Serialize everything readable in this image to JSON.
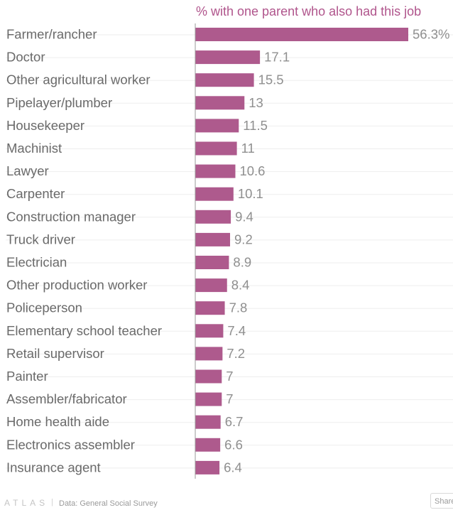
{
  "chart_data": {
    "type": "bar",
    "orientation": "horizontal",
    "title": "% with one parent who also had this job",
    "categories": [
      "Farmer/rancher",
      "Doctor",
      "Other agricultural worker",
      "Pipelayer/plumber",
      "Housekeeper",
      "Machinist",
      "Lawyer",
      "Carpenter",
      "Construction manager",
      "Truck driver",
      "Electrician",
      "Other production worker",
      "Policeperson",
      "Elementary school teacher",
      "Retail supervisor",
      "Painter",
      "Assembler/fabricator",
      "Home health aide",
      "Electronics assembler",
      "Insurance agent"
    ],
    "values": [
      56.3,
      17.1,
      15.5,
      13,
      11.5,
      11,
      10.6,
      10.1,
      9.4,
      9.2,
      8.9,
      8.4,
      7.8,
      7.4,
      7.2,
      7,
      7,
      6.7,
      6.6,
      6.4
    ],
    "value_labels": [
      "56.3%",
      "17.1",
      "15.5",
      "13",
      "11.5",
      "11",
      "10.6",
      "10.1",
      "9.4",
      "9.2",
      "8.9",
      "8.4",
      "7.8",
      "7.4",
      "7.2",
      "7",
      "7",
      "6.7",
      "6.6",
      "6.4"
    ],
    "xlim": [
      0,
      56.3
    ],
    "grid": true,
    "colors": {
      "bar": "#ae5a8d",
      "title": "#b0558c"
    }
  },
  "footer": {
    "logo": "ATLAS",
    "separator": "|",
    "source": "Data:  General Social Survey",
    "share_label": "Share"
  }
}
